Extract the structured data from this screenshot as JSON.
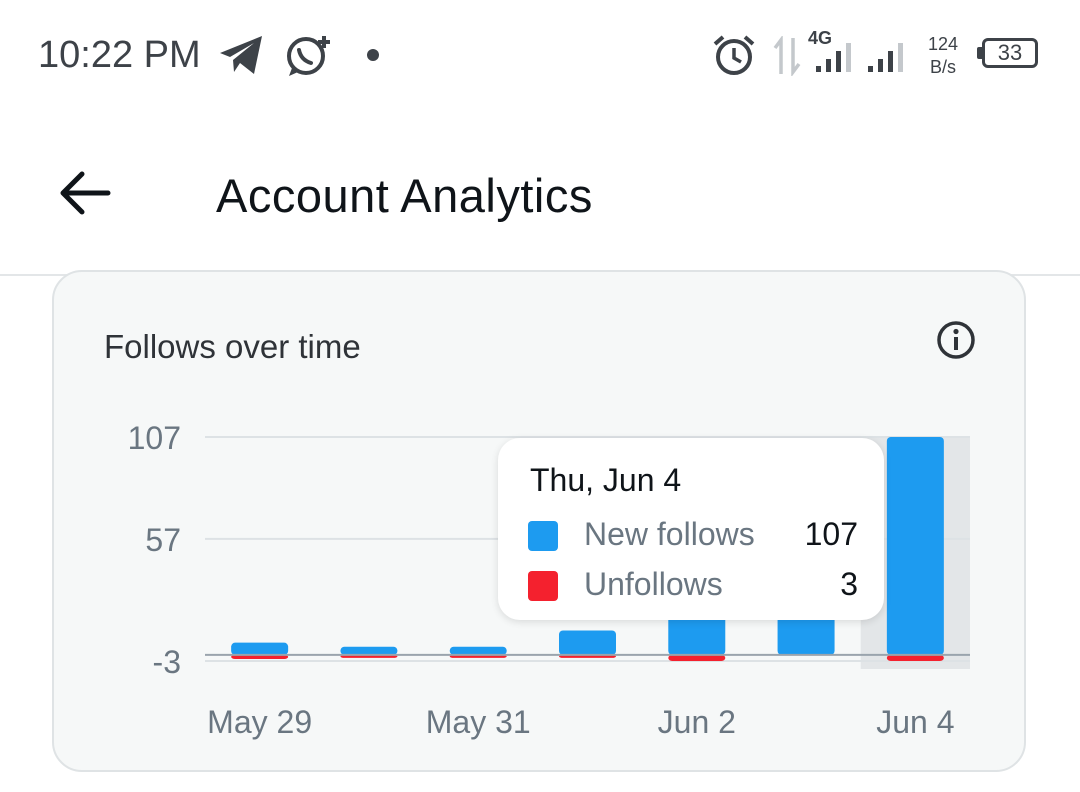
{
  "status_bar": {
    "time": "10:22 PM",
    "network_label": "4G",
    "speed_value": "124",
    "speed_unit": "B/s",
    "battery": "33"
  },
  "app_bar": {
    "title": "Account Analytics"
  },
  "card": {
    "title": "Follows over time"
  },
  "tooltip": {
    "date": "Thu, Jun 4",
    "rows": [
      {
        "label": "New follows",
        "value": "107",
        "color": "#1d9bf0"
      },
      {
        "label": "Unfollows",
        "value": "3",
        "color": "#f4212e"
      }
    ]
  },
  "chart_data": {
    "type": "bar",
    "title": "Follows over time",
    "categories": [
      "May 29",
      "May 30",
      "May 31",
      "Jun 1",
      "Jun 2",
      "Jun 3",
      "Jun 4"
    ],
    "x_tick_labels": [
      "May 29",
      "May 31",
      "Jun 2",
      "Jun 4"
    ],
    "y_ticks": [
      "107",
      "57",
      "-3"
    ],
    "ylim": [
      -3,
      107
    ],
    "series": [
      {
        "name": "New follows",
        "color": "#1d9bf0",
        "values": [
          6,
          4,
          4,
          12,
          25,
          30,
          107
        ]
      },
      {
        "name": "Unfollows",
        "color": "#f4212e",
        "values": [
          -2,
          -1,
          -1,
          -1,
          -3,
          0,
          -3
        ]
      }
    ],
    "highlighted_category": "Jun 4",
    "grid": true
  }
}
